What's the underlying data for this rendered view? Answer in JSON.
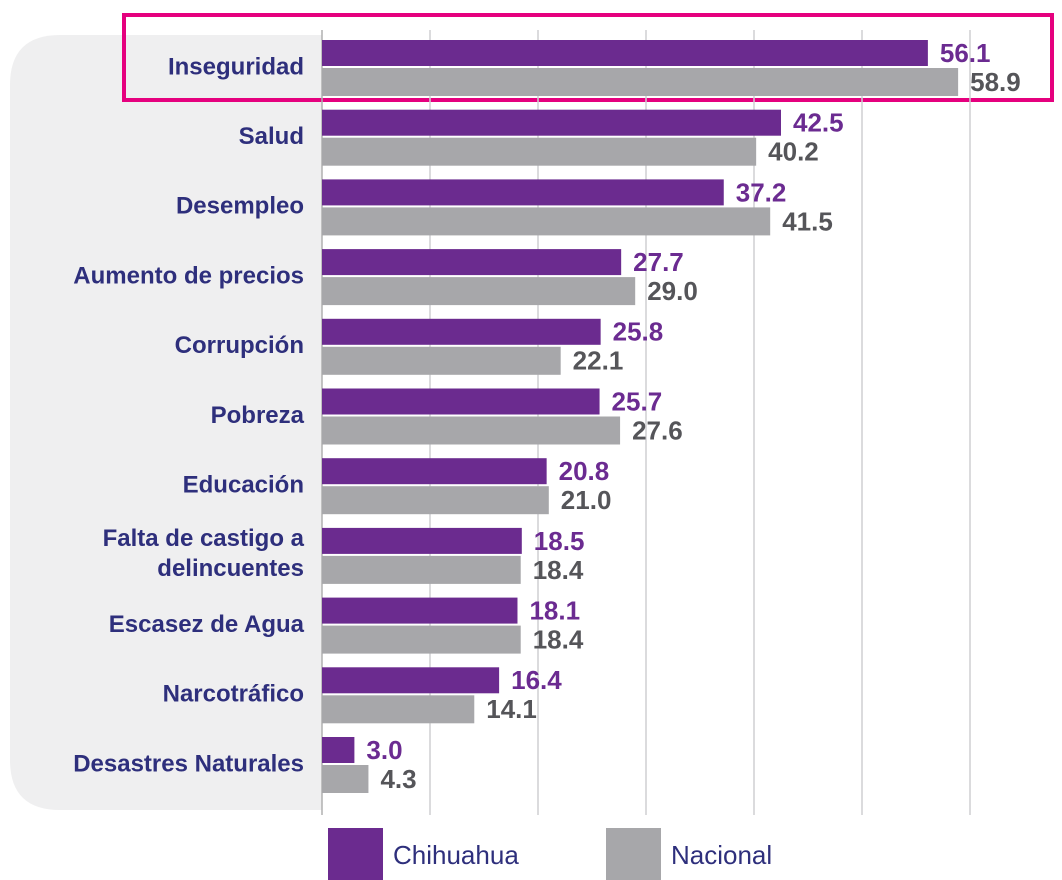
{
  "chart_data": {
    "type": "bar",
    "orientation": "horizontal",
    "categories": [
      "Inseguridad",
      "Salud",
      "Desempleo",
      "Aumento de precios",
      "Corrupción",
      "Pobreza",
      "Educación",
      "Falta de castigo a delincuentes",
      "Escasez de Agua",
      "Narcotráfico",
      "Desastres Naturales"
    ],
    "series": [
      {
        "name": "Chihuahua",
        "color": "#6b2b8f",
        "label_color": "#6b2b91",
        "values": [
          56.1,
          42.5,
          37.2,
          27.7,
          25.8,
          25.7,
          20.8,
          18.5,
          18.1,
          16.4,
          3.0
        ],
        "value_labels": [
          "56.1",
          "42.5",
          "37.2",
          "27.7",
          "25.8",
          "25.7",
          "20.8",
          "18.5",
          "18.1",
          "16.4",
          "3.0"
        ]
      },
      {
        "name": "Nacional",
        "color": "#a7a7aa",
        "label_color": "#555559",
        "values": [
          58.9,
          40.2,
          41.5,
          29.0,
          22.1,
          27.6,
          21.0,
          18.4,
          18.4,
          14.1,
          4.3
        ],
        "value_labels": [
          "58.9",
          "40.2",
          "41.5",
          "29.0",
          "22.1",
          "27.6",
          "21.0",
          "18.4",
          "18.4",
          "14.1",
          "4.3"
        ]
      }
    ],
    "xlim": [
      0,
      60
    ],
    "xticks": [
      0,
      10,
      20,
      30,
      40,
      50,
      60
    ],
    "grid": true,
    "legend": "bottom"
  }
}
